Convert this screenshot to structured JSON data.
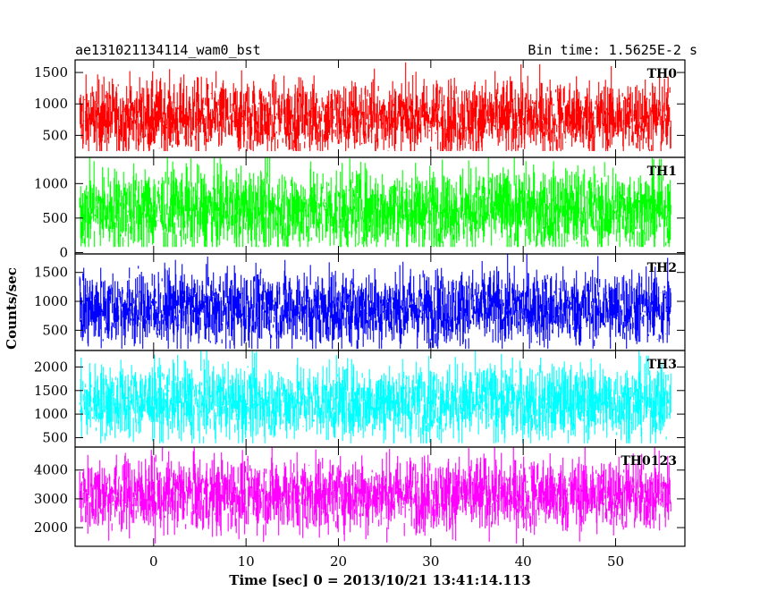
{
  "chart_data": {
    "type": "line",
    "title": "ae131021134114_wam0_bst",
    "bin_time_label": "Bin time: 1.5625E-2 s",
    "xlabel": "Time [sec] 0 = 2013/10/21 13:41:14.113",
    "ylabel": "Counts/sec",
    "xlim": [
      -8.5,
      57.5
    ],
    "data_x_range": [
      -8,
      56
    ],
    "x_ticks": [
      0,
      10,
      20,
      30,
      40,
      50
    ],
    "x_tick_labels": [
      "0",
      "10",
      "20",
      "30",
      "40",
      "50"
    ],
    "panels": [
      {
        "label": "TH0",
        "color": "#ff0000",
        "ylim": [
          150,
          1700
        ],
        "y_ticks": [
          500,
          1000,
          1500
        ],
        "y_tick_labels": [
          "500",
          "1000",
          "1500"
        ],
        "level_mean": 780,
        "level_spread": 300,
        "level_min": 250,
        "level_max": 1700
      },
      {
        "label": "TH1",
        "color": "#00ff00",
        "ylim": [
          -20,
          1380
        ],
        "y_ticks": [
          0,
          500,
          1000
        ],
        "y_tick_labels": [
          "0",
          "500",
          "1000"
        ],
        "level_mean": 620,
        "level_spread": 300,
        "level_min": 80,
        "level_max": 1380
      },
      {
        "label": "TH2",
        "color": "#0000ff",
        "ylim": [
          150,
          1820
        ],
        "y_ticks": [
          500,
          1000,
          1500
        ],
        "y_tick_labels": [
          "500",
          "1000",
          "1500"
        ],
        "level_mean": 880,
        "level_spread": 330,
        "level_min": 180,
        "level_max": 1820
      },
      {
        "label": "TH3",
        "color": "#00ffff",
        "ylim": [
          300,
          2350
        ],
        "y_ticks": [
          500,
          1000,
          1500,
          2000
        ],
        "y_tick_labels": [
          "500",
          "1000",
          "1500",
          "2000"
        ],
        "level_mean": 1260,
        "level_spread": 400,
        "level_min": 380,
        "level_max": 2350
      },
      {
        "label": "TH0123",
        "color": "#ff00ff",
        "ylim": [
          1350,
          4800
        ],
        "y_ticks": [
          2000,
          3000,
          4000
        ],
        "y_tick_labels": [
          "2000",
          "3000",
          "4000"
        ],
        "level_mean": 3150,
        "level_spread": 650,
        "level_min": 1450,
        "level_max": 4800
      }
    ]
  }
}
